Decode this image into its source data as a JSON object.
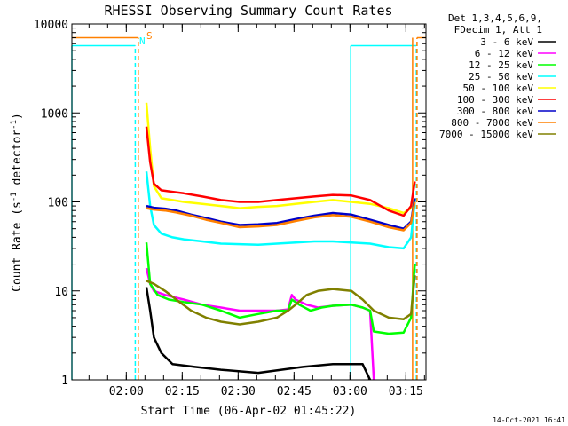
{
  "chart_data": {
    "type": "line",
    "title": "RHESSI Observing Summary Count Rates",
    "xlabel": "Start Time (06-Apr-02 01:45:22)",
    "ylabel_parts": [
      "Count Rate (s",
      "-1",
      " detector",
      "-1",
      ")"
    ],
    "yscale": "log",
    "ylim": [
      1,
      10000
    ],
    "y_ticks": [
      {
        "value": 1,
        "label": "1"
      },
      {
        "value": 10,
        "label": "10"
      },
      {
        "value": 100,
        "label": "100"
      },
      {
        "value": 1000,
        "label": "1000"
      },
      {
        "value": 10000,
        "label": "10000"
      }
    ],
    "xlim_min": [
      0,
      95
    ],
    "x_ticks": [
      {
        "value": 14.6,
        "label": "02:00"
      },
      {
        "value": 29.6,
        "label": "02:15"
      },
      {
        "value": 44.6,
        "label": "02:30"
      },
      {
        "value": 59.6,
        "label": "02:45"
      },
      {
        "value": 74.6,
        "label": "03:00"
      },
      {
        "value": 89.6,
        "label": "03:15"
      }
    ],
    "legend_header": [
      "Det 1,3,4,5,6,9,",
      "FDecim 1, Att 1"
    ],
    "flag_labels": {
      "saa": "S",
      "night": "N"
    },
    "timestamp": "14-Oct-2021 16:41",
    "series": [
      {
        "name": "3 - 6 keV",
        "color": "#000000",
        "points": [
          [
            20,
            11
          ],
          [
            21,
            6
          ],
          [
            22,
            3
          ],
          [
            24,
            2
          ],
          [
            27,
            1.5
          ],
          [
            33,
            1.4
          ],
          [
            40,
            1.3
          ],
          [
            50,
            1.2
          ],
          [
            62,
            1.4
          ],
          [
            70,
            1.5
          ],
          [
            78,
            1.5
          ],
          [
            80,
            1
          ]
        ]
      },
      {
        "name": "6 - 12 keV",
        "color": "#ff00ff",
        "points": [
          [
            20,
            18
          ],
          [
            21,
            12
          ],
          [
            22,
            10
          ],
          [
            25,
            9
          ],
          [
            30,
            8
          ],
          [
            35,
            7
          ],
          [
            40,
            6.5
          ],
          [
            45,
            6
          ],
          [
            50,
            6
          ],
          [
            55,
            6
          ],
          [
            58,
            6.2
          ],
          [
            59,
            9
          ],
          [
            60,
            8
          ],
          [
            63,
            7
          ],
          [
            66,
            6.5
          ],
          [
            70,
            6.8
          ],
          [
            75,
            7
          ],
          [
            78,
            6.5
          ],
          [
            80,
            6
          ],
          [
            81,
            1
          ]
        ]
      },
      {
        "name": "12 - 25 keV",
        "color": "#00ff00",
        "points": [
          [
            20,
            35
          ],
          [
            21,
            12
          ],
          [
            23,
            9
          ],
          [
            26,
            8
          ],
          [
            30,
            7.5
          ],
          [
            35,
            7
          ],
          [
            40,
            6
          ],
          [
            45,
            5
          ],
          [
            50,
            5.5
          ],
          [
            55,
            6
          ],
          [
            58,
            6
          ],
          [
            59,
            8
          ],
          [
            61,
            7
          ],
          [
            64,
            6
          ],
          [
            67,
            6.5
          ],
          [
            70,
            6.8
          ],
          [
            75,
            7
          ],
          [
            78,
            6.5
          ],
          [
            80,
            6
          ],
          [
            81,
            3.5
          ],
          [
            85,
            3.3
          ],
          [
            89,
            3.4
          ],
          [
            91,
            5
          ],
          [
            92,
            20
          ]
        ]
      },
      {
        "name": "25 - 50 keV",
        "color": "#00ffff",
        "points": [
          [
            20,
            220
          ],
          [
            21,
            90
          ],
          [
            22,
            55
          ],
          [
            24,
            44
          ],
          [
            27,
            40
          ],
          [
            30,
            38
          ],
          [
            35,
            36
          ],
          [
            40,
            34
          ],
          [
            45,
            33.5
          ],
          [
            50,
            33
          ],
          [
            55,
            34
          ],
          [
            60,
            35
          ],
          [
            65,
            36
          ],
          [
            70,
            36
          ],
          [
            75,
            35
          ],
          [
            80,
            34
          ],
          [
            85,
            31
          ],
          [
            89,
            30
          ],
          [
            91,
            40
          ],
          [
            92,
            100
          ]
        ]
      },
      {
        "name": "50 - 100 keV",
        "color": "#ffff00",
        "points": [
          [
            20,
            1300
          ],
          [
            21,
            400
          ],
          [
            22,
            150
          ],
          [
            24,
            110
          ],
          [
            27,
            105
          ],
          [
            30,
            100
          ],
          [
            35,
            95
          ],
          [
            40,
            90
          ],
          [
            45,
            85
          ],
          [
            50,
            88
          ],
          [
            55,
            90
          ],
          [
            60,
            95
          ],
          [
            65,
            100
          ],
          [
            70,
            105
          ],
          [
            75,
            100
          ],
          [
            80,
            95
          ],
          [
            85,
            85
          ],
          [
            89,
            75
          ],
          [
            91,
            85
          ],
          [
            92,
            110
          ]
        ]
      },
      {
        "name": "100 - 300 keV",
        "color": "#ff0000",
        "points": [
          [
            20,
            700
          ],
          [
            21,
            280
          ],
          [
            22,
            160
          ],
          [
            24,
            135
          ],
          [
            27,
            130
          ],
          [
            30,
            125
          ],
          [
            35,
            115
          ],
          [
            40,
            105
          ],
          [
            45,
            100
          ],
          [
            50,
            100
          ],
          [
            55,
            105
          ],
          [
            60,
            110
          ],
          [
            65,
            115
          ],
          [
            70,
            120
          ],
          [
            75,
            118
          ],
          [
            80,
            105
          ],
          [
            85,
            80
          ],
          [
            89,
            70
          ],
          [
            91,
            90
          ],
          [
            92,
            170
          ]
        ]
      },
      {
        "name": "300 - 800 keV",
        "color": "#0000c8",
        "points": [
          [
            20,
            90
          ],
          [
            22,
            86
          ],
          [
            25,
            84
          ],
          [
            28,
            80
          ],
          [
            32,
            72
          ],
          [
            36,
            66
          ],
          [
            40,
            60
          ],
          [
            45,
            55
          ],
          [
            50,
            56
          ],
          [
            55,
            58
          ],
          [
            60,
            64
          ],
          [
            65,
            70
          ],
          [
            70,
            75
          ],
          [
            75,
            72
          ],
          [
            80,
            63
          ],
          [
            85,
            55
          ],
          [
            89,
            50
          ],
          [
            91,
            60
          ],
          [
            92,
            110
          ]
        ]
      },
      {
        "name": "800 - 7000 keV",
        "color": "#ff8000",
        "points": [
          [
            20,
            85
          ],
          [
            22,
            82
          ],
          [
            25,
            80
          ],
          [
            28,
            76
          ],
          [
            32,
            70
          ],
          [
            36,
            63
          ],
          [
            40,
            58
          ],
          [
            45,
            52
          ],
          [
            50,
            53
          ],
          [
            55,
            55
          ],
          [
            60,
            61
          ],
          [
            65,
            67
          ],
          [
            70,
            71
          ],
          [
            75,
            68
          ],
          [
            80,
            60
          ],
          [
            85,
            52
          ],
          [
            89,
            48
          ],
          [
            91,
            58
          ],
          [
            92,
            100
          ]
        ]
      },
      {
        "name": "7000 - 15000 keV",
        "color": "#808000",
        "points": [
          [
            20,
            13
          ],
          [
            22,
            12
          ],
          [
            25,
            10
          ],
          [
            28,
            8
          ],
          [
            32,
            6
          ],
          [
            36,
            5
          ],
          [
            40,
            4.5
          ],
          [
            45,
            4.2
          ],
          [
            50,
            4.5
          ],
          [
            55,
            5
          ],
          [
            58,
            6
          ],
          [
            60,
            7
          ],
          [
            63,
            9
          ],
          [
            66,
            10
          ],
          [
            70,
            10.5
          ],
          [
            75,
            10
          ],
          [
            78,
            8
          ],
          [
            81,
            6
          ],
          [
            85,
            5
          ],
          [
            89,
            4.8
          ],
          [
            91,
            5.5
          ],
          [
            92,
            15
          ]
        ]
      }
    ],
    "flag_lines": [
      {
        "name": "saa-level",
        "color": "#ff8000",
        "style": "solid",
        "points": [
          [
            0,
            7000
          ],
          [
            17.8,
            7000
          ]
        ]
      },
      {
        "name": "saa-level-end",
        "color": "#ff8000",
        "style": "solid",
        "points": [
          [
            92.6,
            7000
          ],
          [
            95,
            7000
          ]
        ]
      },
      {
        "name": "night-level",
        "color": "#00ffff",
        "style": "solid",
        "points": [
          [
            0,
            5700
          ],
          [
            17.0,
            5700
          ]
        ]
      },
      {
        "name": "night-level-end",
        "color": "#00ffff",
        "style": "solid",
        "points": [
          [
            74.8,
            5700
          ],
          [
            92.4,
            5700
          ]
        ]
      },
      {
        "name": "night-edge-left",
        "color": "#00ffff",
        "style": "solid",
        "points": [
          [
            0,
            1
          ],
          [
            0,
            5700
          ]
        ]
      },
      {
        "name": "night-edge-mid",
        "color": "#00ffff",
        "style": "solid",
        "points": [
          [
            74.8,
            1
          ],
          [
            74.8,
            5700
          ]
        ]
      },
      {
        "name": "night-start-dashed",
        "color": "#00ffff",
        "style": "dashed",
        "points": [
          [
            17.0,
            1
          ],
          [
            17.0,
            5700
          ]
        ]
      },
      {
        "name": "night-end-dashed",
        "color": "#00ffff",
        "style": "dashed",
        "points": [
          [
            92.4,
            1
          ],
          [
            92.4,
            5700
          ]
        ]
      },
      {
        "name": "saa-start-dashed",
        "color": "#ff8000",
        "style": "dashed",
        "points": [
          [
            17.8,
            1
          ],
          [
            17.8,
            7000
          ]
        ]
      },
      {
        "name": "saa-end-solid",
        "color": "#ff8000",
        "style": "solid",
        "points": [
          [
            91.4,
            1
          ],
          [
            91.4,
            7000
          ]
        ]
      },
      {
        "name": "saa-end-dashed",
        "color": "#ff8000",
        "style": "dashed",
        "points": [
          [
            92.6,
            1
          ],
          [
            92.6,
            7000
          ]
        ]
      }
    ]
  }
}
